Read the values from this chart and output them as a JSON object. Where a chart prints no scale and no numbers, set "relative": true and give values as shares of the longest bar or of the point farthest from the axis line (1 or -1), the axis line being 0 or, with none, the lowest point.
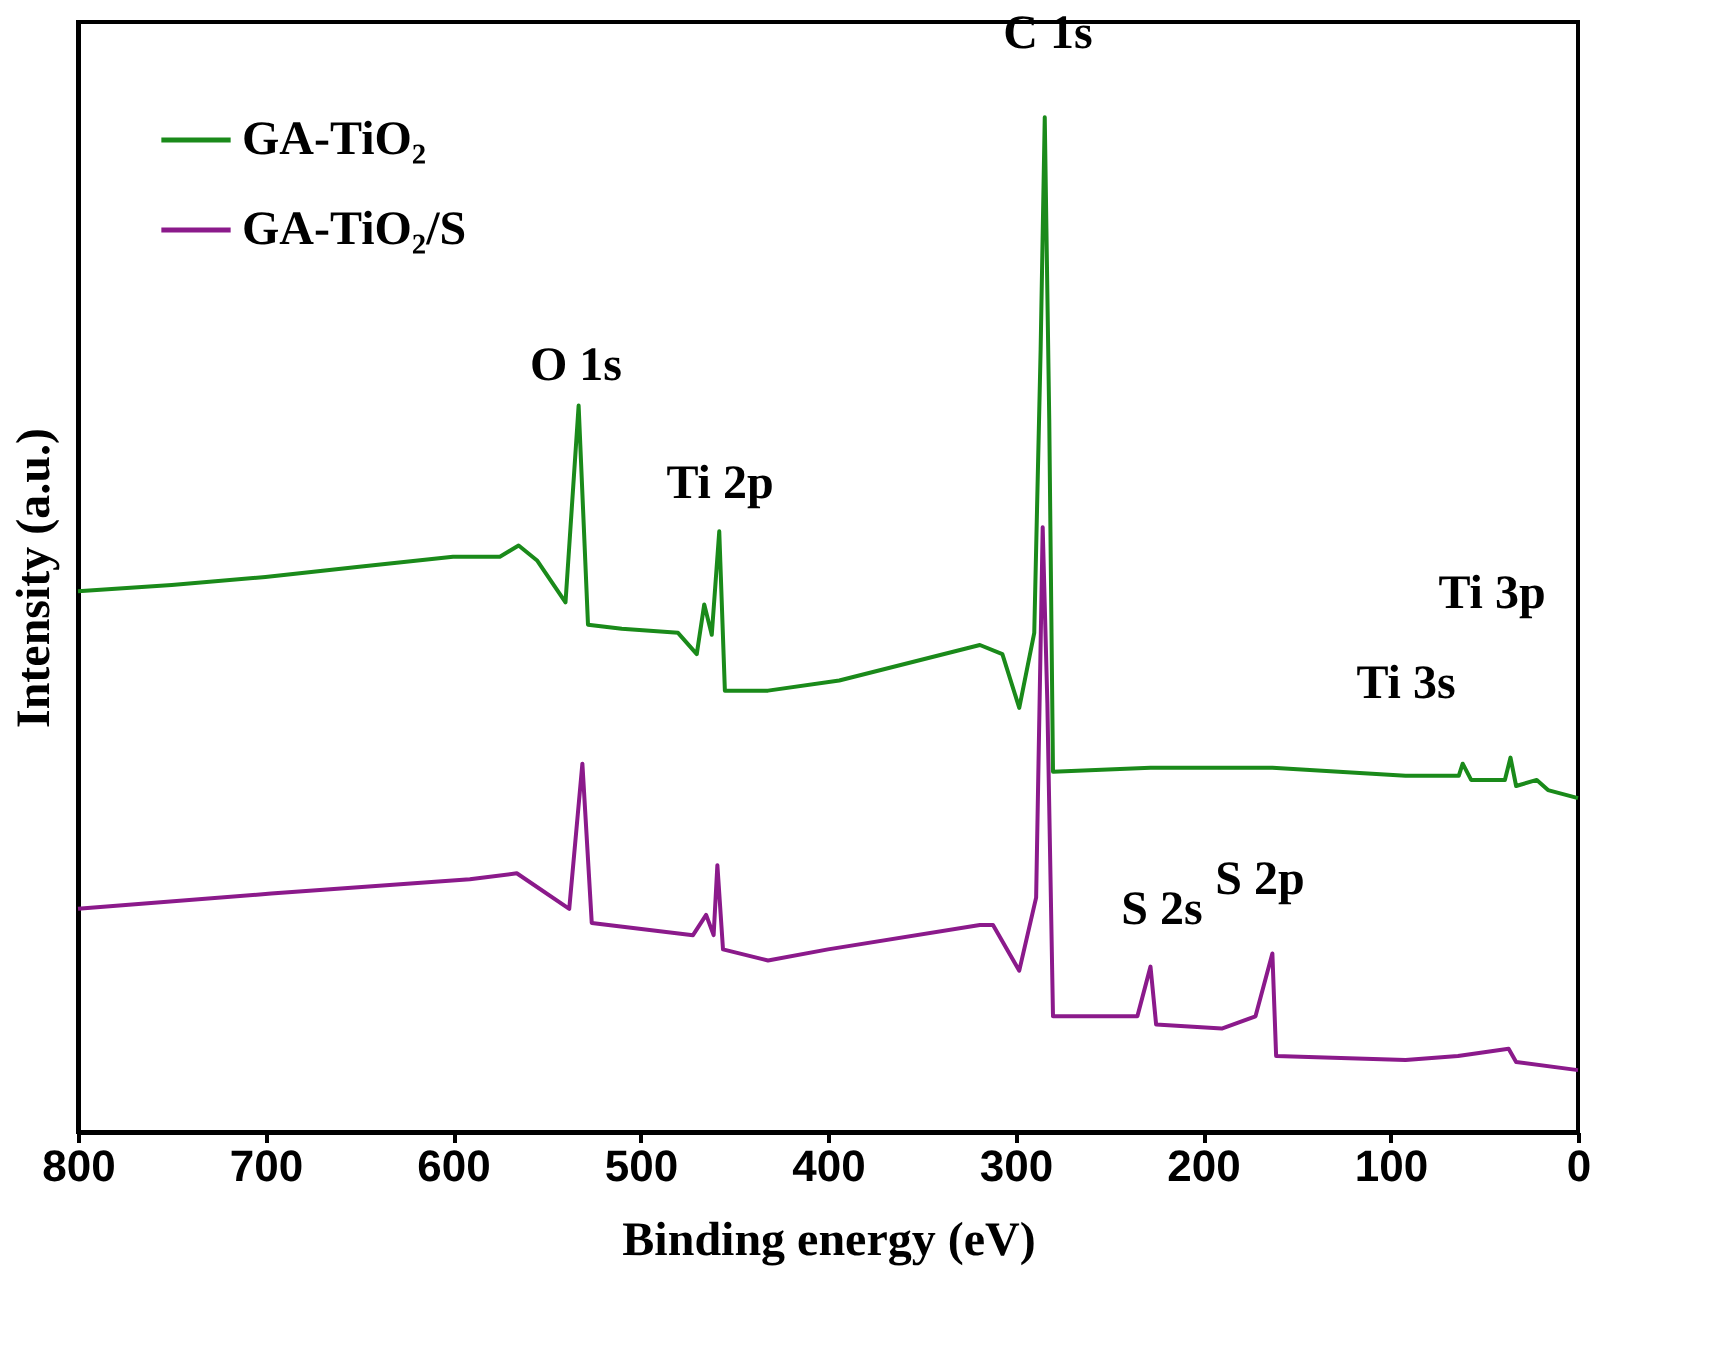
{
  "chart_data": {
    "type": "line",
    "relative": true,
    "xlabel": "Binding energy (eV)",
    "ylabel": "Intensity (a.u.)",
    "xlim": [
      800,
      0
    ],
    "xticks": [
      800,
      700,
      600,
      500,
      400,
      300,
      200,
      100,
      0
    ],
    "legend": "top left",
    "series": [
      {
        "name": "GA-TiO₂",
        "color": "#1a8a1a",
        "x": [
          800,
          750,
          700,
          650,
          600,
          575,
          565,
          555,
          540,
          533,
          528,
          510,
          480,
          470,
          466,
          462,
          458,
          455,
          432,
          394,
          319,
          307,
          298,
          290,
          286.6,
          284.4,
          282,
          280,
          228,
          163,
          92,
          63.6,
          61.5,
          57,
          39,
          36,
          33,
          22,
          16,
          0
        ],
        "values": [
          0.533,
          0.539,
          0.547,
          0.557,
          0.567,
          0.567,
          0.578,
          0.563,
          0.522,
          0.716,
          0.5,
          0.496,
          0.492,
          0.471,
          0.52,
          0.49,
          0.592,
          0.435,
          0.435,
          0.445,
          0.48,
          0.471,
          0.418,
          0.492,
          0.771,
          1.0,
          0.702,
          0.355,
          0.359,
          0.359,
          0.351,
          0.351,
          0.363,
          0.347,
          0.347,
          0.369,
          0.341,
          0.347,
          0.337,
          0.329
        ]
      },
      {
        "name": "GA-TiO₂/S",
        "color": "#8b1a8b",
        "x": [
          800,
          697,
          591,
          566,
          538,
          531,
          526,
          472,
          465,
          461,
          459,
          456,
          432,
          400,
          319,
          312,
          298,
          289,
          285.5,
          283,
          280,
          235,
          228,
          225,
          190,
          172,
          163,
          161,
          92,
          64,
          37,
          33,
          0
        ],
        "values": [
          0.22,
          0.235,
          0.249,
          0.255,
          0.22,
          0.363,
          0.206,
          0.194,
          0.214,
          0.194,
          0.263,
          0.18,
          0.169,
          0.18,
          0.204,
          0.204,
          0.159,
          0.231,
          0.596,
          0.422,
          0.114,
          0.114,
          0.163,
          0.106,
          0.102,
          0.114,
          0.176,
          0.075,
          0.071,
          0.075,
          0.082,
          0.069,
          0.061
        ]
      }
    ],
    "annotations": [
      "C 1s",
      "O 1s",
      "Ti 2p",
      "Ti 3p",
      "Ti 3s",
      "S 2s",
      "S 2p"
    ]
  }
}
